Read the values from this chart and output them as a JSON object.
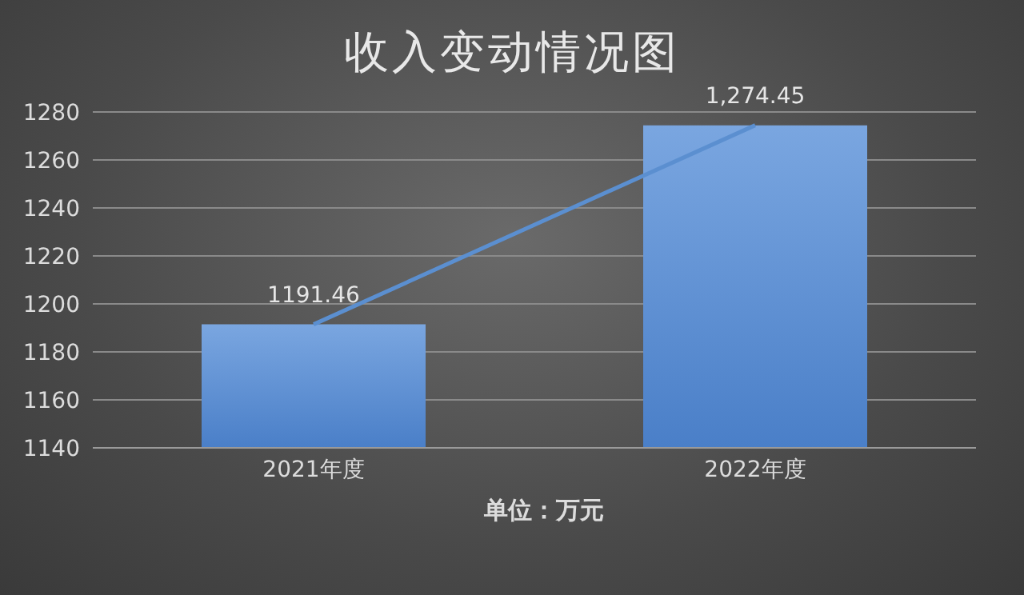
{
  "chart_data": {
    "type": "bar",
    "title": "收入变动情况图",
    "categories": [
      "2021年度",
      "2022年度"
    ],
    "series": [
      {
        "color": "#4a7fc8",
        "values": [
          1191.46,
          1274.45
        ]
      },
      {
        "type": "line",
        "color": "#5b8fd0",
        "values": [
          1191.46,
          1274.45
        ],
        "value_labels": [
          "1191.46",
          "1,274.45"
        ]
      }
    ],
    "ylim": [
      1140,
      1280
    ],
    "yticks": [
      1140,
      1160,
      1180,
      1200,
      1220,
      1240,
      1260,
      1280
    ],
    "grid": "y",
    "marker": "none",
    "line_style": "solid",
    "annotations": [
      "单位：万元"
    ]
  }
}
